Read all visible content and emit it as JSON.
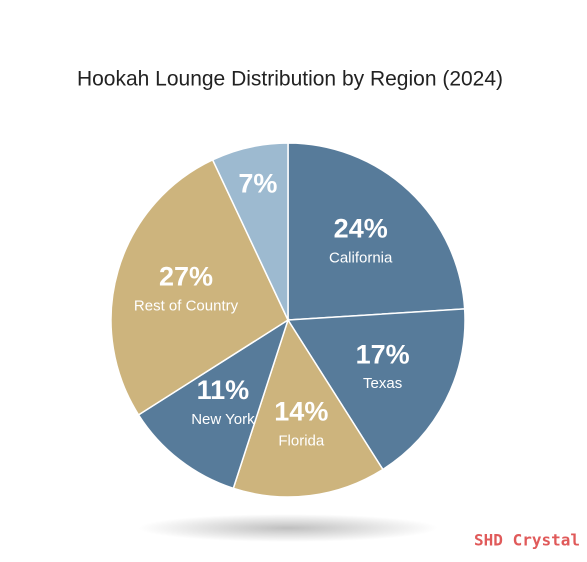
{
  "chart_data": {
    "type": "pie",
    "title": "Hookah Lounge Distribution by Region (2024)",
    "categories": [
      "California",
      "Texas",
      "Florida",
      "New York",
      "Rest of Country",
      null
    ],
    "values": [
      24,
      17,
      14,
      11,
      27,
      7
    ],
    "value_labels": [
      "24%",
      "17%",
      "14%",
      "11%",
      "27%",
      "7%"
    ],
    "colors": [
      "#577b9a",
      "#577b9a",
      "#cdb47d",
      "#577b9a",
      "#cdb47d",
      "#9dbad0"
    ],
    "watermark": "SHD Crystal"
  }
}
